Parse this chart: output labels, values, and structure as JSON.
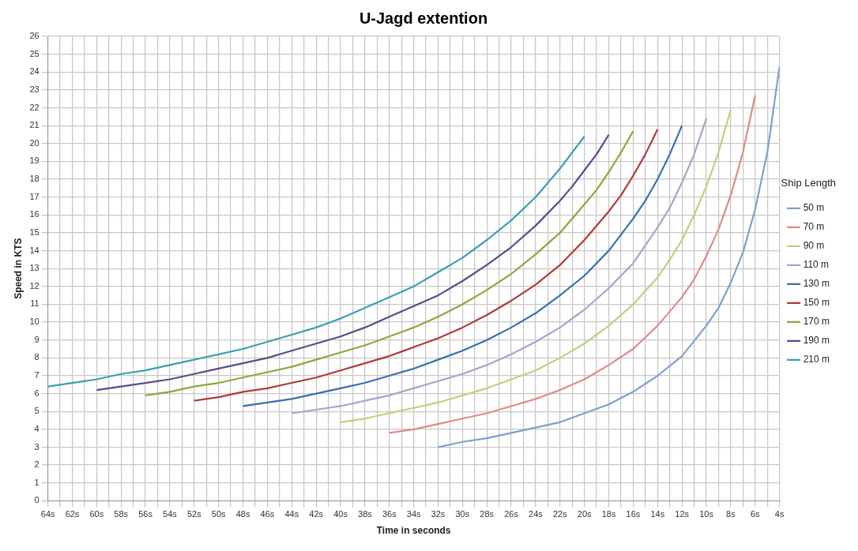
{
  "chart_data": {
    "type": "line",
    "title": "U-Jagd extention",
    "xlabel": "Time in seconds",
    "ylabel": "Speed in KTS",
    "legend_title": "Ship Length",
    "legend": "right",
    "grid": true,
    "marker": "none",
    "line_style": "solid",
    "xlim": [
      64,
      4
    ],
    "xticks": [
      {
        "value": 64,
        "label": "64s"
      },
      {
        "value": 63,
        "label": null
      },
      {
        "value": 62,
        "label": "62s"
      },
      {
        "value": 61,
        "label": null
      },
      {
        "value": 60,
        "label": "60s"
      },
      {
        "value": 59,
        "label": null
      },
      {
        "value": 58,
        "label": "58s"
      },
      {
        "value": 57,
        "label": null
      },
      {
        "value": 56,
        "label": "56s"
      },
      {
        "value": 55,
        "label": null
      },
      {
        "value": 54,
        "label": "54s"
      },
      {
        "value": 53,
        "label": null
      },
      {
        "value": 52,
        "label": "52s"
      },
      {
        "value": 51,
        "label": null
      },
      {
        "value": 50,
        "label": "50s"
      },
      {
        "value": 49,
        "label": null
      },
      {
        "value": 48,
        "label": "48s"
      },
      {
        "value": 47,
        "label": null
      },
      {
        "value": 46,
        "label": "46s"
      },
      {
        "value": 45,
        "label": null
      },
      {
        "value": 44,
        "label": "44s"
      },
      {
        "value": 43,
        "label": null
      },
      {
        "value": 42,
        "label": "42s"
      },
      {
        "value": 41,
        "label": null
      },
      {
        "value": 40,
        "label": "40s"
      },
      {
        "value": 39,
        "label": null
      },
      {
        "value": 38,
        "label": "38s"
      },
      {
        "value": 37,
        "label": null
      },
      {
        "value": 36,
        "label": "36s"
      },
      {
        "value": 35,
        "label": null
      },
      {
        "value": 34,
        "label": "34s"
      },
      {
        "value": 33,
        "label": null
      },
      {
        "value": 32,
        "label": "32s"
      },
      {
        "value": 31,
        "label": null
      },
      {
        "value": 30,
        "label": "30s"
      },
      {
        "value": 29,
        "label": null
      },
      {
        "value": 28,
        "label": "28s"
      },
      {
        "value": 27,
        "label": null
      },
      {
        "value": 26,
        "label": "26s"
      },
      {
        "value": 25,
        "label": null
      },
      {
        "value": 24,
        "label": "24s"
      },
      {
        "value": 23,
        "label": null
      },
      {
        "value": 22,
        "label": "22s"
      },
      {
        "value": 21,
        "label": null
      },
      {
        "value": 20,
        "label": "20s"
      },
      {
        "value": 19,
        "label": null
      },
      {
        "value": 18,
        "label": "18s"
      },
      {
        "value": 17,
        "label": null
      },
      {
        "value": 16,
        "label": "16s"
      },
      {
        "value": 15,
        "label": null
      },
      {
        "value": 14,
        "label": "14s"
      },
      {
        "value": 13,
        "label": null
      },
      {
        "value": 12,
        "label": "12s"
      },
      {
        "value": 11,
        "label": null
      },
      {
        "value": 10,
        "label": "10s"
      },
      {
        "value": 9,
        "label": null
      },
      {
        "value": 8,
        "label": "8s"
      },
      {
        "value": 7,
        "label": null
      },
      {
        "value": 6,
        "label": "6s"
      },
      {
        "value": 5,
        "label": null
      },
      {
        "value": 4,
        "label": "4s"
      }
    ],
    "ylim": [
      0,
      26
    ],
    "yticks": [
      0,
      1,
      2,
      3,
      4,
      5,
      6,
      7,
      8,
      9,
      10,
      11,
      12,
      13,
      14,
      15,
      16,
      17,
      18,
      19,
      20,
      21,
      22,
      23,
      24,
      25,
      26
    ],
    "series": [
      {
        "name": "50 m",
        "color": "#7f9fcf",
        "x": [
          32,
          30,
          28,
          26,
          24,
          22,
          20,
          18,
          16,
          14,
          12,
          10,
          9,
          8,
          7,
          6,
          5,
          4
        ],
        "values": [
          3.0,
          3.3,
          3.5,
          3.8,
          4.1,
          4.4,
          4.9,
          5.4,
          6.1,
          7.0,
          8.1,
          9.8,
          10.8,
          12.2,
          13.9,
          16.3,
          19.5,
          24.3
        ]
      },
      {
        "name": "70 m",
        "color": "#e08a8a",
        "x": [
          36,
          34,
          32,
          30,
          28,
          26,
          24,
          22,
          20,
          18,
          16,
          14,
          12,
          11,
          10,
          9,
          8,
          7,
          6
        ],
        "values": [
          3.8,
          4.0,
          4.3,
          4.6,
          4.9,
          5.3,
          5.7,
          6.2,
          6.8,
          7.6,
          8.5,
          9.8,
          11.4,
          12.4,
          13.7,
          15.2,
          17.1,
          19.5,
          22.7
        ]
      },
      {
        "name": "90 m",
        "color": "#b5d67a",
        "x": [
          40,
          38,
          36,
          34,
          32,
          30,
          28,
          26,
          24,
          22,
          20,
          18,
          16,
          14,
          13,
          12,
          11,
          10,
          9,
          8
        ],
        "values": [
          4.4,
          4.6,
          4.9,
          5.2,
          5.5,
          5.9,
          6.3,
          6.8,
          7.3,
          8.0,
          8.8,
          9.8,
          11.0,
          12.5,
          13.5,
          14.6,
          16.0,
          17.6,
          19.5,
          21.9
        ]
      },
      {
        "name": "110 m",
        "color": "#a9a3c9",
        "x": [
          44,
          42,
          40,
          38,
          36,
          34,
          32,
          30,
          28,
          26,
          24,
          22,
          20,
          18,
          16,
          14,
          13,
          12,
          11,
          10
        ],
        "values": [
          4.9,
          5.1,
          5.3,
          5.6,
          5.9,
          6.3,
          6.7,
          7.1,
          7.6,
          8.2,
          8.9,
          9.7,
          10.7,
          11.9,
          13.3,
          15.3,
          16.4,
          17.8,
          19.4,
          21.4
        ]
      },
      {
        "name": "130 m",
        "color": "#3a6fb0",
        "x": [
          48,
          46,
          44,
          42,
          40,
          38,
          36,
          34,
          32,
          30,
          28,
          26,
          24,
          22,
          20,
          18,
          16,
          15,
          14,
          13,
          12
        ],
        "values": [
          5.3,
          5.5,
          5.7,
          6.0,
          6.3,
          6.6,
          7.0,
          7.4,
          7.9,
          8.4,
          9.0,
          9.7,
          10.5,
          11.5,
          12.6,
          14.0,
          15.8,
          16.8,
          18.0,
          19.4,
          21.0
        ]
      },
      {
        "name": "150 m",
        "color": "#b03a3a",
        "x": [
          52,
          50,
          48,
          46,
          44,
          42,
          40,
          38,
          36,
          34,
          32,
          30,
          28,
          26,
          24,
          22,
          20,
          18,
          17,
          16,
          15,
          14
        ],
        "values": [
          5.6,
          5.8,
          6.1,
          6.3,
          6.6,
          6.9,
          7.3,
          7.7,
          8.1,
          8.6,
          9.1,
          9.7,
          10.4,
          11.2,
          12.1,
          13.2,
          14.6,
          16.2,
          17.1,
          18.2,
          19.4,
          20.8
        ]
      },
      {
        "name": "170 m",
        "color": "#8aaa3a",
        "x": [
          56,
          54,
          52,
          50,
          48,
          46,
          44,
          42,
          40,
          38,
          36,
          34,
          32,
          30,
          28,
          26,
          24,
          22,
          20,
          19,
          18,
          17,
          16
        ],
        "values": [
          5.9,
          6.1,
          6.4,
          6.6,
          6.9,
          7.2,
          7.5,
          7.9,
          8.3,
          8.7,
          9.2,
          9.7,
          10.3,
          11.0,
          11.8,
          12.7,
          13.8,
          15.0,
          16.6,
          17.4,
          18.4,
          19.5,
          20.7
        ]
      },
      {
        "name": "190 m",
        "color": "#5e4a8a",
        "x": [
          60,
          58,
          56,
          54,
          52,
          50,
          48,
          46,
          44,
          42,
          40,
          38,
          36,
          34,
          32,
          30,
          28,
          26,
          24,
          22,
          21,
          20,
          19,
          18
        ],
        "values": [
          6.2,
          6.4,
          6.6,
          6.8,
          7.1,
          7.4,
          7.7,
          8.0,
          8.4,
          8.8,
          9.2,
          9.7,
          10.3,
          10.9,
          11.5,
          12.3,
          13.2,
          14.2,
          15.4,
          16.8,
          17.6,
          18.5,
          19.4,
          20.5
        ]
      },
      {
        "name": "210 m",
        "color": "#3aa0b0",
        "x": [
          64,
          62,
          60,
          58,
          56,
          54,
          52,
          50,
          48,
          46,
          44,
          42,
          40,
          38,
          36,
          34,
          32,
          30,
          28,
          26,
          24,
          22,
          21,
          20
        ],
        "values": [
          6.4,
          6.6,
          6.8,
          7.1,
          7.3,
          7.6,
          7.9,
          8.2,
          8.5,
          8.9,
          9.3,
          9.7,
          10.2,
          10.8,
          11.4,
          12.0,
          12.8,
          13.6,
          14.6,
          15.7,
          17.0,
          18.6,
          19.5,
          20.4
        ]
      }
    ]
  }
}
